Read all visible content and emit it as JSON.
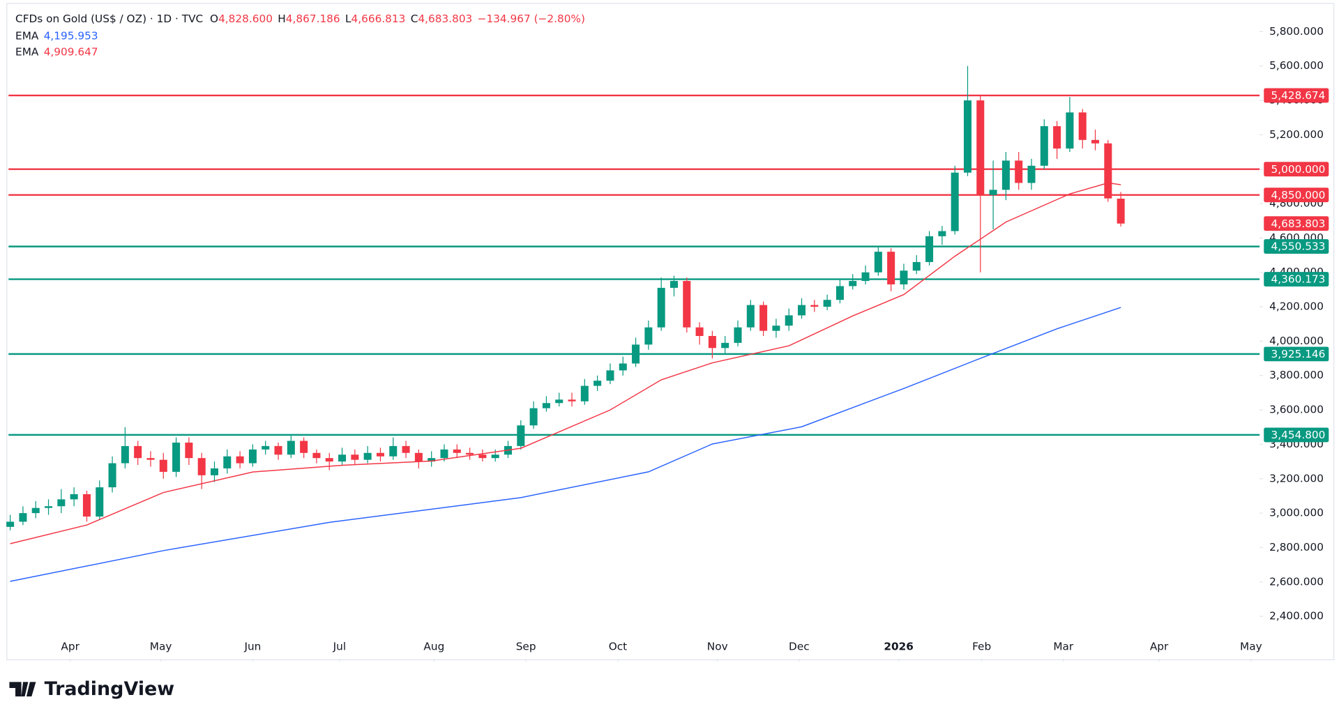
{
  "chart_data": {
    "type": "candlestick",
    "legend": {
      "symbol": "CFDs on Gold (US$ / OZ) · 1D · TVC",
      "items": [
        {
          "key": "O",
          "text": "4,828.600"
        },
        {
          "key": "H",
          "text": "4,867.186"
        },
        {
          "key": "L",
          "text": "4,666.813"
        },
        {
          "key": "C",
          "text": "4,683.803"
        }
      ],
      "change": "−134.967 (−2.80%)"
    },
    "brand": "TradingView",
    "up_color": "#089981",
    "down_color": "#f23645",
    "open": [
      2920,
      2950,
      3000,
      3030,
      3040,
      3080,
      3110,
      2980,
      3150,
      3290,
      3390,
      3320,
      3310,
      3240,
      3410,
      3320,
      3220,
      3260,
      3330,
      3290,
      3370,
      3390,
      3340,
      3420,
      3350,
      3320,
      3300,
      3340,
      3310,
      3350,
      3330,
      3390,
      3350,
      3300,
      3320,
      3370,
      3350,
      3340,
      3320,
      3340,
      3390,
      3510,
      3610,
      3640,
      3660,
      3650,
      3740,
      3770,
      3830,
      3870,
      3980,
      4080,
      4310,
      4350,
      4080,
      4030,
      3960,
      3990,
      4080,
      4210,
      4060,
      4090,
      4150,
      4210,
      4200,
      4240,
      4320,
      4350,
      4400,
      4520,
      4330,
      4410,
      4460,
      4610,
      4640,
      4980,
      5400,
      4850,
      4880,
      5050,
      4920,
      5020,
      5250,
      5120,
      5330,
      5170,
      5150,
      4828.6
    ],
    "high": [
      2990,
      3040,
      3070,
      3080,
      3140,
      3150,
      3130,
      3190,
      3330,
      3500,
      3420,
      3360,
      3350,
      3440,
      3440,
      3350,
      3300,
      3370,
      3360,
      3400,
      3420,
      3410,
      3450,
      3440,
      3370,
      3350,
      3380,
      3370,
      3390,
      3380,
      3440,
      3420,
      3370,
      3360,
      3400,
      3400,
      3380,
      3370,
      3370,
      3420,
      3540,
      3650,
      3680,
      3700,
      3700,
      3780,
      3800,
      3870,
      3910,
      4020,
      4120,
      4370,
      4380,
      4370,
      4110,
      4060,
      4030,
      4120,
      4240,
      4230,
      4130,
      4190,
      4250,
      4240,
      4270,
      4360,
      4390,
      4440,
      4550,
      4540,
      4450,
      4500,
      4640,
      4670,
      5020,
      5600,
      5430,
      5050,
      5100,
      5100,
      5060,
      5290,
      5280,
      5420,
      5350,
      5230,
      5170,
      4867.186
    ],
    "low": [
      2900,
      2930,
      2970,
      2990,
      3000,
      3040,
      2950,
      2960,
      3120,
      3260,
      3280,
      3270,
      3200,
      3210,
      3280,
      3140,
      3180,
      3230,
      3260,
      3270,
      3340,
      3310,
      3320,
      3320,
      3290,
      3250,
      3280,
      3280,
      3290,
      3300,
      3310,
      3320,
      3260,
      3270,
      3300,
      3320,
      3310,
      3300,
      3300,
      3320,
      3370,
      3490,
      3590,
      3620,
      3620,
      3630,
      3710,
      3750,
      3800,
      3850,
      3950,
      4060,
      4260,
      4050,
      3980,
      3900,
      3930,
      3970,
      4060,
      4030,
      4020,
      4060,
      4130,
      4170,
      4180,
      4220,
      4300,
      4330,
      4380,
      4290,
      4300,
      4390,
      4440,
      4560,
      4620,
      4960,
      4400,
      4650,
      4820,
      4880,
      4880,
      5000,
      5060,
      5100,
      5120,
      5110,
      4810,
      4666.813
    ],
    "close": [
      2950,
      3000,
      3030,
      3040,
      3080,
      3110,
      2980,
      3150,
      3290,
      3390,
      3320,
      3310,
      3240,
      3410,
      3320,
      3220,
      3260,
      3330,
      3290,
      3370,
      3390,
      3340,
      3420,
      3350,
      3320,
      3300,
      3340,
      3310,
      3350,
      3330,
      3390,
      3350,
      3300,
      3320,
      3370,
      3350,
      3340,
      3320,
      3340,
      3390,
      3510,
      3610,
      3640,
      3660,
      3650,
      3740,
      3770,
      3830,
      3870,
      3980,
      4080,
      4310,
      4350,
      4080,
      4030,
      3960,
      3990,
      4080,
      4210,
      4060,
      4090,
      4150,
      4210,
      4200,
      4240,
      4320,
      4350,
      4400,
      4520,
      4330,
      4410,
      4460,
      4610,
      4640,
      4980,
      5400,
      4850,
      4880,
      5050,
      4920,
      5020,
      5250,
      5120,
      5330,
      5170,
      5150,
      4830,
      4683.803
    ],
    "overlays": [
      {
        "name": "EMA",
        "color": "#2962ff",
        "x": [
          0,
          12,
          25,
          40,
          50,
          55,
          62,
          70,
          76,
          82,
          87
        ],
        "values": [
          2603,
          2782,
          2946,
          3090,
          3240,
          3402,
          3502,
          3725,
          3900,
          4072,
          4195.953
        ],
        "value_labels": [
          null,
          null,
          null,
          null,
          null,
          null,
          null,
          null,
          null,
          null,
          "4,195.953"
        ]
      },
      {
        "name": "EMA",
        "color": "#f23645",
        "x": [
          0,
          6,
          12,
          19,
          26,
          33,
          40,
          47,
          51,
          55,
          61,
          66,
          70,
          74,
          78,
          83,
          86,
          87
        ],
        "values": [
          2822,
          2931,
          3120,
          3239,
          3278,
          3303,
          3377,
          3600,
          3775,
          3874,
          3973,
          4147,
          4271,
          4494,
          4693,
          4856,
          4920,
          4909.647
        ],
        "value_labels": [
          null,
          null,
          null,
          null,
          null,
          null,
          null,
          null,
          null,
          null,
          null,
          null,
          null,
          null,
          null,
          null,
          null,
          "4,909.647"
        ]
      }
    ],
    "levels": [
      {
        "value": 5428.674,
        "label": "5,428.674",
        "color": "#f23645"
      },
      {
        "value": 5000,
        "label": "5,000.000",
        "color": "#f23645"
      },
      {
        "value": 4850,
        "label": "4,850.000",
        "color": "#f23645"
      },
      {
        "value": 4550.533,
        "label": "4,550.533",
        "color": "#089981"
      },
      {
        "value": 4360.173,
        "label": "4,360.173",
        "color": "#089981"
      },
      {
        "value": 3925.146,
        "label": "3,925.146",
        "color": "#089981"
      },
      {
        "value": 3454.8,
        "label": "3,454.800",
        "color": "#089981"
      }
    ],
    "last_price": {
      "value": 4683.803,
      "label": "4,683.803",
      "color": "#f23645"
    },
    "xlim": [
      -0.13,
      97.87
    ],
    "xticks": [
      {
        "value": 4.7,
        "label": "Apr"
      },
      {
        "value": 11.8,
        "label": "May"
      },
      {
        "value": 19.0,
        "label": "Jun"
      },
      {
        "value": 25.8,
        "label": "Jul"
      },
      {
        "value": 33.2,
        "label": "Aug"
      },
      {
        "value": 40.4,
        "label": "Sep"
      },
      {
        "value": 47.6,
        "label": "Oct"
      },
      {
        "value": 55.4,
        "label": "Nov"
      },
      {
        "value": 61.8,
        "label": "Dec"
      },
      {
        "value": 69.6,
        "label": "2026"
      },
      {
        "value": 76.1,
        "label": "Feb"
      },
      {
        "value": 82.5,
        "label": "Mar"
      },
      {
        "value": 90.0,
        "label": "Apr"
      },
      {
        "value": 97.2,
        "label": "May"
      }
    ],
    "ylim": [
      2152,
      5959
    ],
    "yticks": [
      {
        "value": 2400,
        "label": "2,400.000"
      },
      {
        "value": 2600,
        "label": "2,600.000"
      },
      {
        "value": 2800,
        "label": "2,800.000"
      },
      {
        "value": 3000,
        "label": "3,000.000"
      },
      {
        "value": 3200,
        "label": "3,200.000"
      },
      {
        "value": 3400,
        "label": "3,400.000"
      },
      {
        "value": 3600,
        "label": "3,600.000"
      },
      {
        "value": 3800,
        "label": "3,800.000"
      },
      {
        "value": 4000,
        "label": "4,000.000"
      },
      {
        "value": 4200,
        "label": "4,200.000"
      },
      {
        "value": 4400,
        "label": "4,400.000"
      },
      {
        "value": 4600,
        "label": "4,600.000"
      },
      {
        "value": 4800,
        "label": "4,800.000"
      },
      {
        "value": 5000,
        "label": "5,000.000"
      },
      {
        "value": 5200,
        "label": "5,200.000"
      },
      {
        "value": 5400,
        "label": "5,400.000"
      },
      {
        "value": 5600,
        "label": "5,600.000"
      },
      {
        "value": 5800,
        "label": "5,800.000"
      }
    ]
  }
}
